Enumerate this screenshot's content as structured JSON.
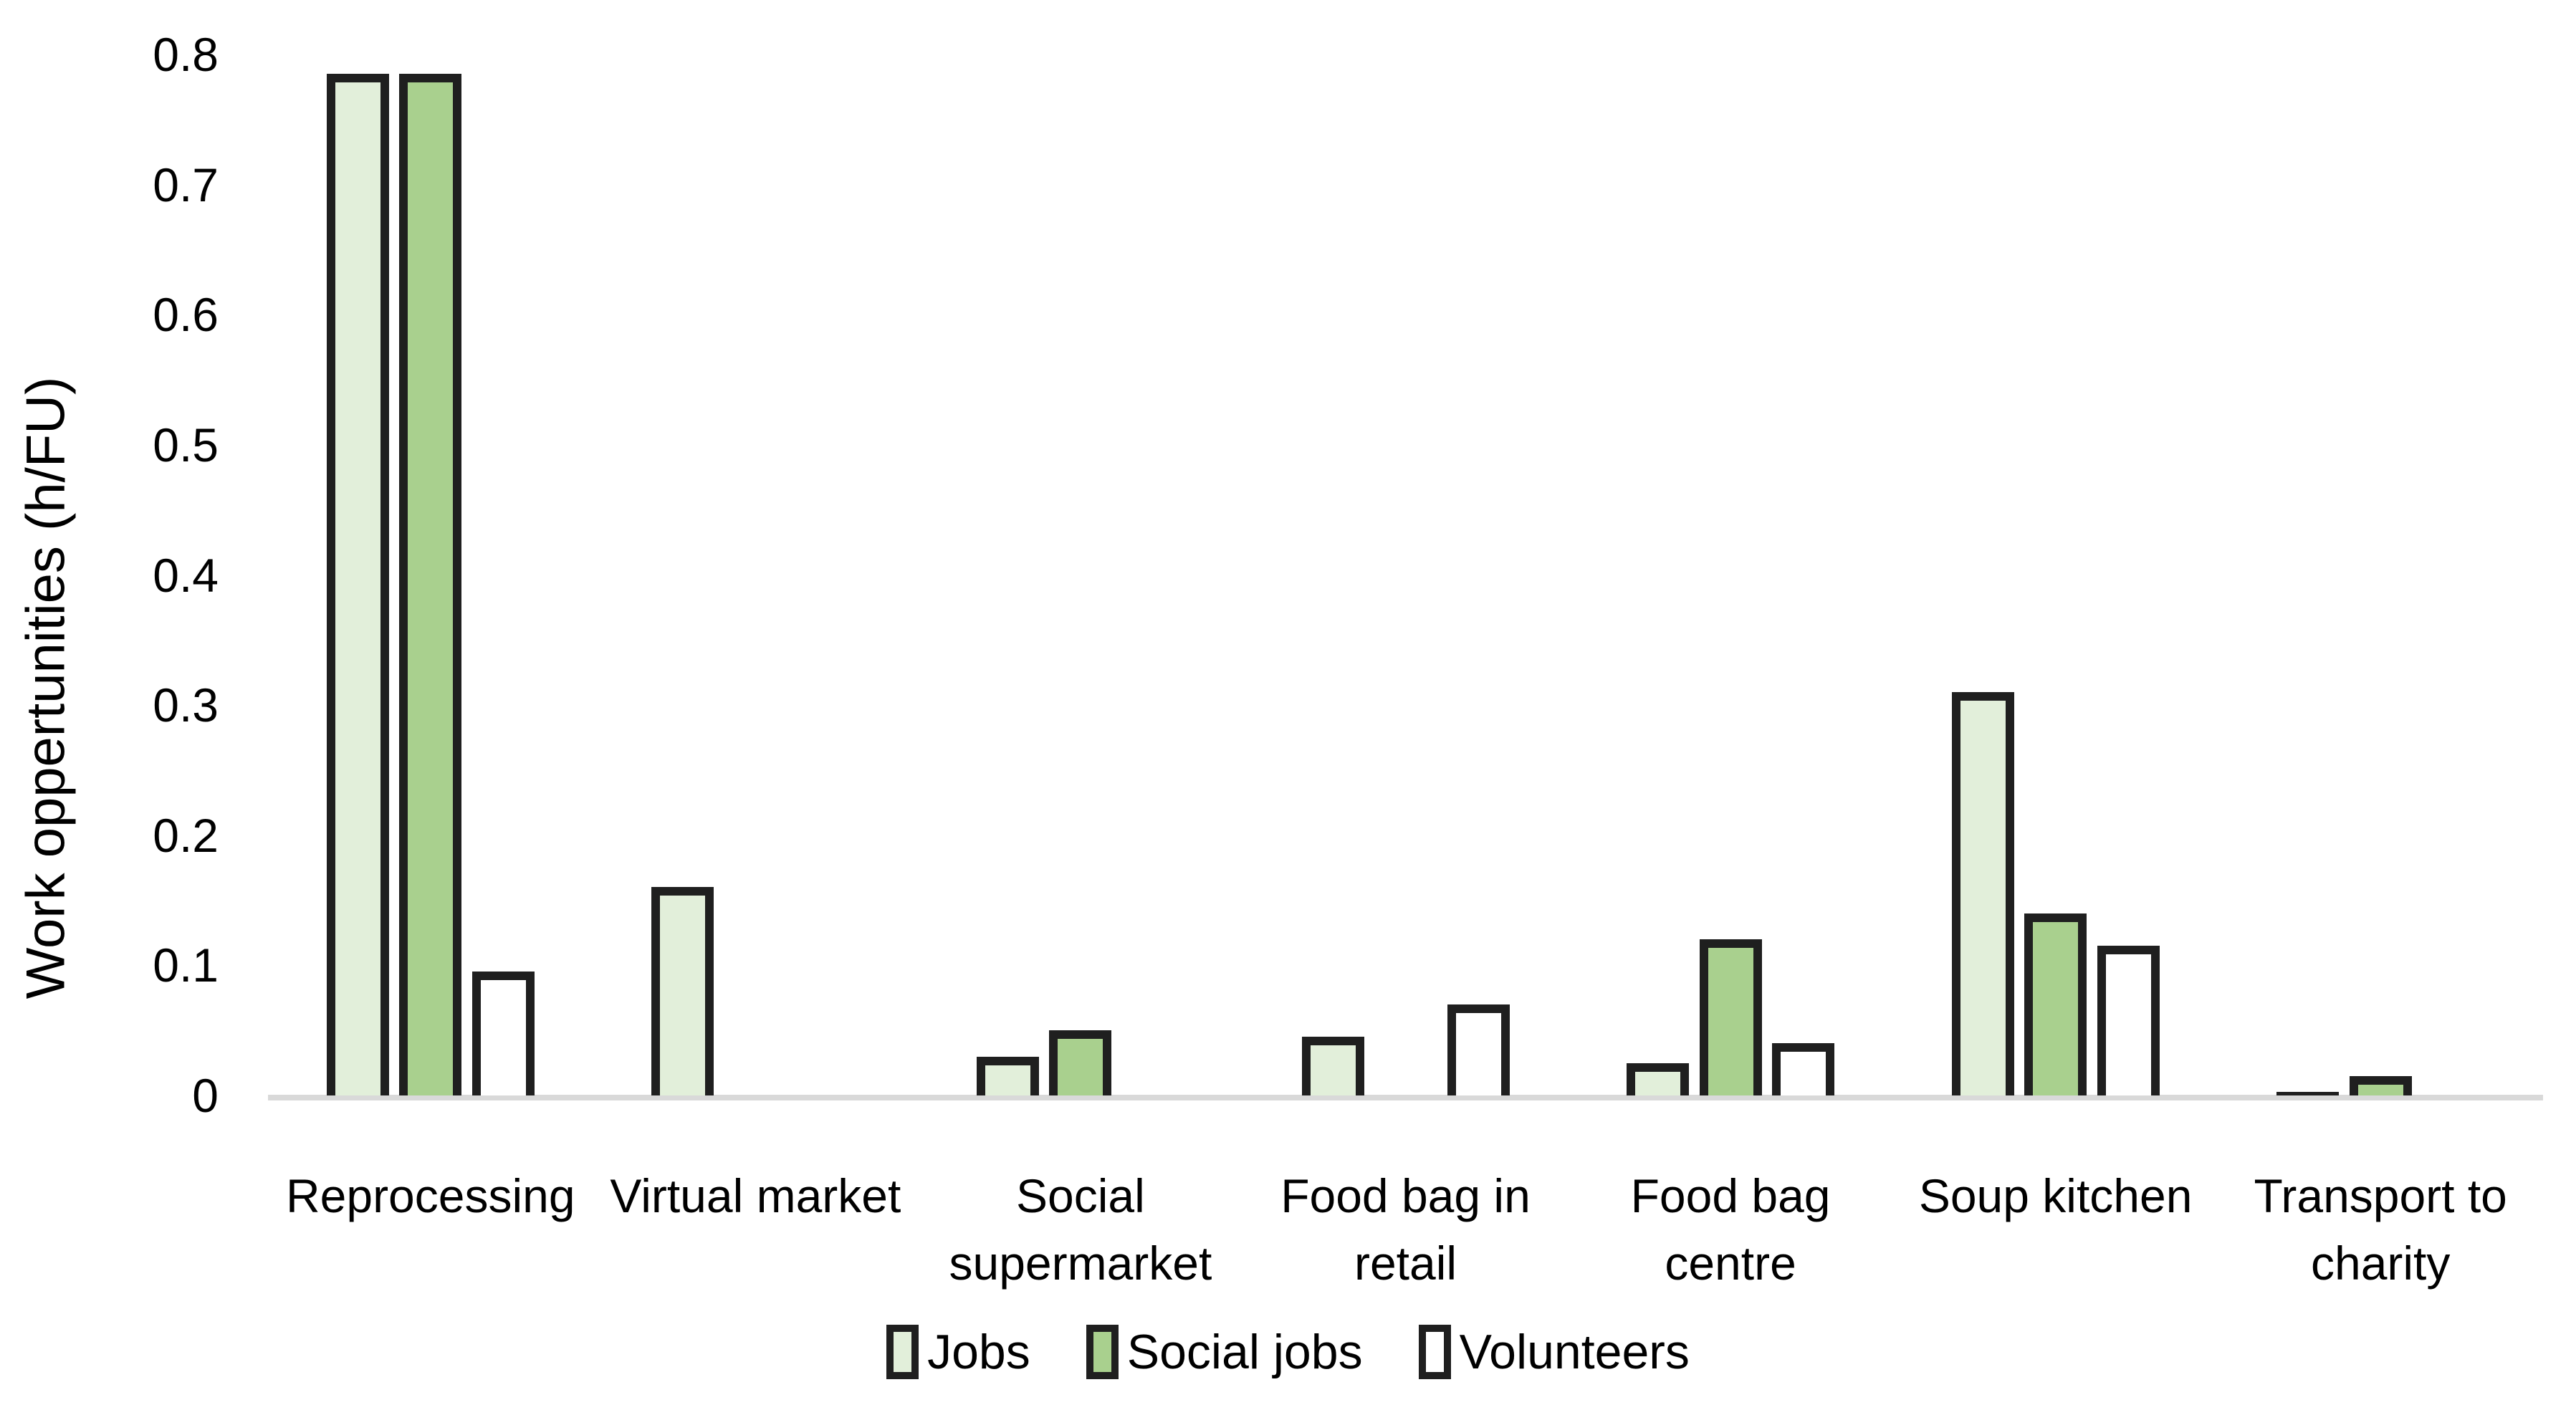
{
  "chart_data": {
    "type": "bar",
    "title": "",
    "xlabel": "",
    "ylabel": "Work oppertunities (h/FU)",
    "ylim": [
      0,
      0.8
    ],
    "yticks": [
      "0",
      "0.1",
      "0.2",
      "0.3",
      "0.4",
      "0.5",
      "0.6",
      "0.7",
      "0.8"
    ],
    "grid": false,
    "legend_position": "bottom",
    "categories": [
      "Reprocessing",
      "Virtual market",
      "Social\nsupermarket",
      "Food bag in\nretail",
      "Food bag\ncentre",
      "Soup kitchen",
      "Transport to\ncharity"
    ],
    "series": [
      {
        "name": "Jobs",
        "fill": "#E2EFDA",
        "values": [
          0.785,
          0.16,
          0.03,
          0.045,
          0.025,
          0.31,
          0.003
        ]
      },
      {
        "name": "Social jobs",
        "fill": "#A9D08E",
        "values": [
          0.785,
          0,
          0.05,
          0,
          0.12,
          0.14,
          0.015
        ]
      },
      {
        "name": "Volunteers",
        "fill": "#FFFFFF",
        "values": [
          0.095,
          0,
          0,
          0.07,
          0.04,
          0.115,
          0
        ]
      }
    ],
    "colors": {
      "bar_border": "#1F1F1F",
      "axis_line": "#D9D9D9",
      "text": "#000000",
      "background": "#FFFFFF"
    }
  }
}
